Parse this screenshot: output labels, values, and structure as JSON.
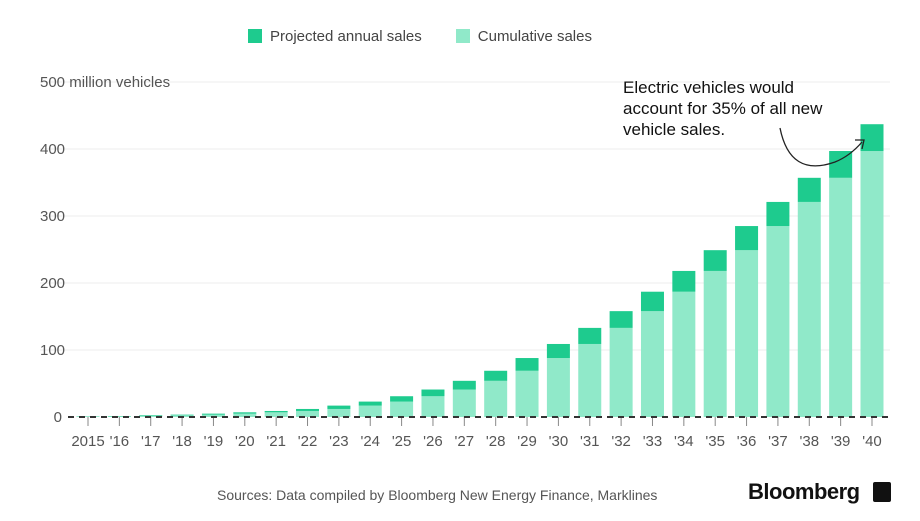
{
  "chart_data": {
    "type": "bar",
    "stacked": true,
    "categories": [
      "2015",
      "'16",
      "'17",
      "'18",
      "'19",
      "'20",
      "'21",
      "'22",
      "'23",
      "'24",
      "'25",
      "'26",
      "'27",
      "'28",
      "'29",
      "'30",
      "'31",
      "'32",
      "'33",
      "'34",
      "'35",
      "'36",
      "'37",
      "'38",
      "'39",
      "'40"
    ],
    "series": [
      {
        "name": "Cumulative sales",
        "color": "#90e9c9",
        "values": [
          0.5,
          1,
          1.5,
          2.5,
          3.5,
          5,
          7,
          9,
          12,
          17,
          23,
          31,
          41,
          54,
          69,
          88,
          109,
          133,
          158,
          187,
          218,
          249,
          285,
          321,
          357,
          397
        ]
      },
      {
        "name": "Projected annual sales",
        "color": "#1ecb8e",
        "values": [
          0.5,
          0.5,
          1,
          1,
          1.5,
          2,
          2,
          3,
          5,
          6,
          8,
          10,
          13,
          15,
          19,
          21,
          24,
          25,
          29,
          31,
          31,
          36,
          36,
          36,
          40,
          40
        ]
      }
    ],
    "ylim": [
      0,
      500
    ],
    "yticks": [
      0,
      100,
      200,
      300,
      400
    ],
    "ylabel": "500 million vehicles",
    "grid": true,
    "legend_placement": "top",
    "annotation": "Electric vehicles would account for 35% of all new vehicle sales.",
    "source": "Sources: Data compiled by Bloomberg New Energy Finance, Marklines"
  },
  "brand": {
    "logo": "Bloomberg"
  }
}
